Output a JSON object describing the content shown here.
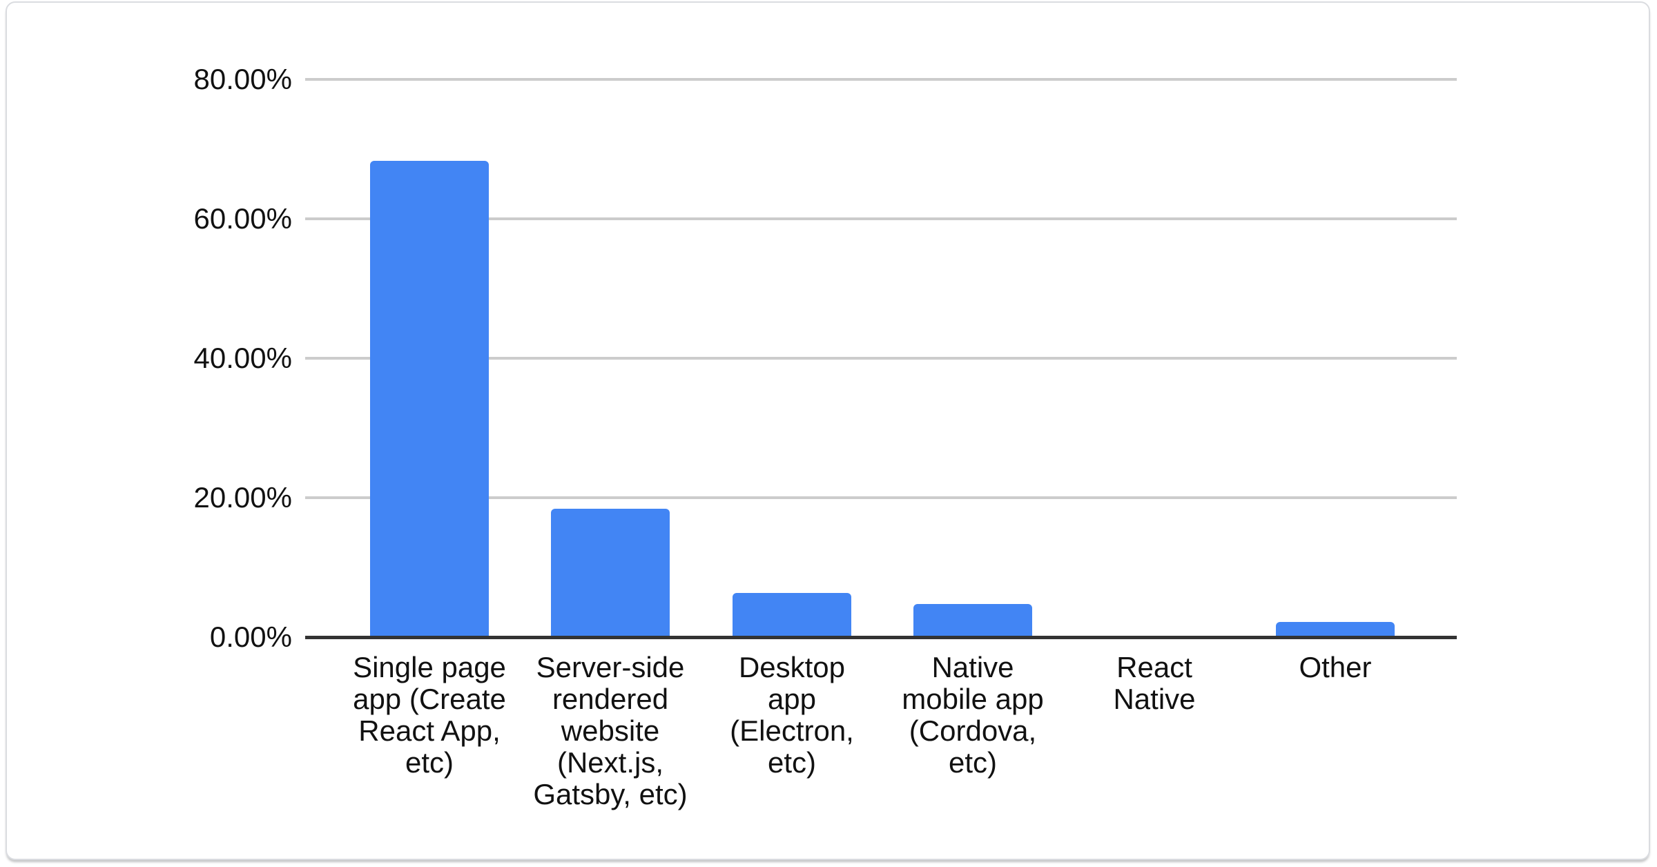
{
  "chart_data": {
    "type": "bar",
    "title": "",
    "categories": [
      "Single page app (Create React App, etc)",
      "Server-side rendered website (Next.js, Gatsby, etc)",
      "Desktop app (Electron, etc)",
      "Native mobile app (Cordova, etc)",
      "React Native",
      "Other"
    ],
    "categories_wrapped": [
      [
        "Single page",
        "app (Create",
        "React App,",
        "etc)"
      ],
      [
        "Server-side",
        "rendered",
        "website",
        "(Next.js,",
        "Gatsby, etc)"
      ],
      [
        "Desktop",
        "app",
        "(Electron,",
        "etc)"
      ],
      [
        "Native",
        "mobile app",
        "(Cordova,",
        "etc)"
      ],
      [
        "React",
        "Native"
      ],
      [
        "Other"
      ]
    ],
    "values": [
      68.3,
      18.4,
      6.3,
      4.8,
      0,
      2.2
    ],
    "unit": "%",
    "y_ticks": [
      "0.00%",
      "20.00%",
      "40.00%",
      "60.00%",
      "80.00%"
    ],
    "ylim": [
      0,
      80
    ],
    "y_tick_step": 20,
    "xlabel": "",
    "ylabel": "",
    "legend": "none",
    "grid": true,
    "bar_color": "#4285f4",
    "gridline_color": "#cccccc",
    "axis_line_color": "#333333",
    "label_color": "#111111",
    "card_background": "#ffffff",
    "card_border_color": "#dadce0"
  }
}
